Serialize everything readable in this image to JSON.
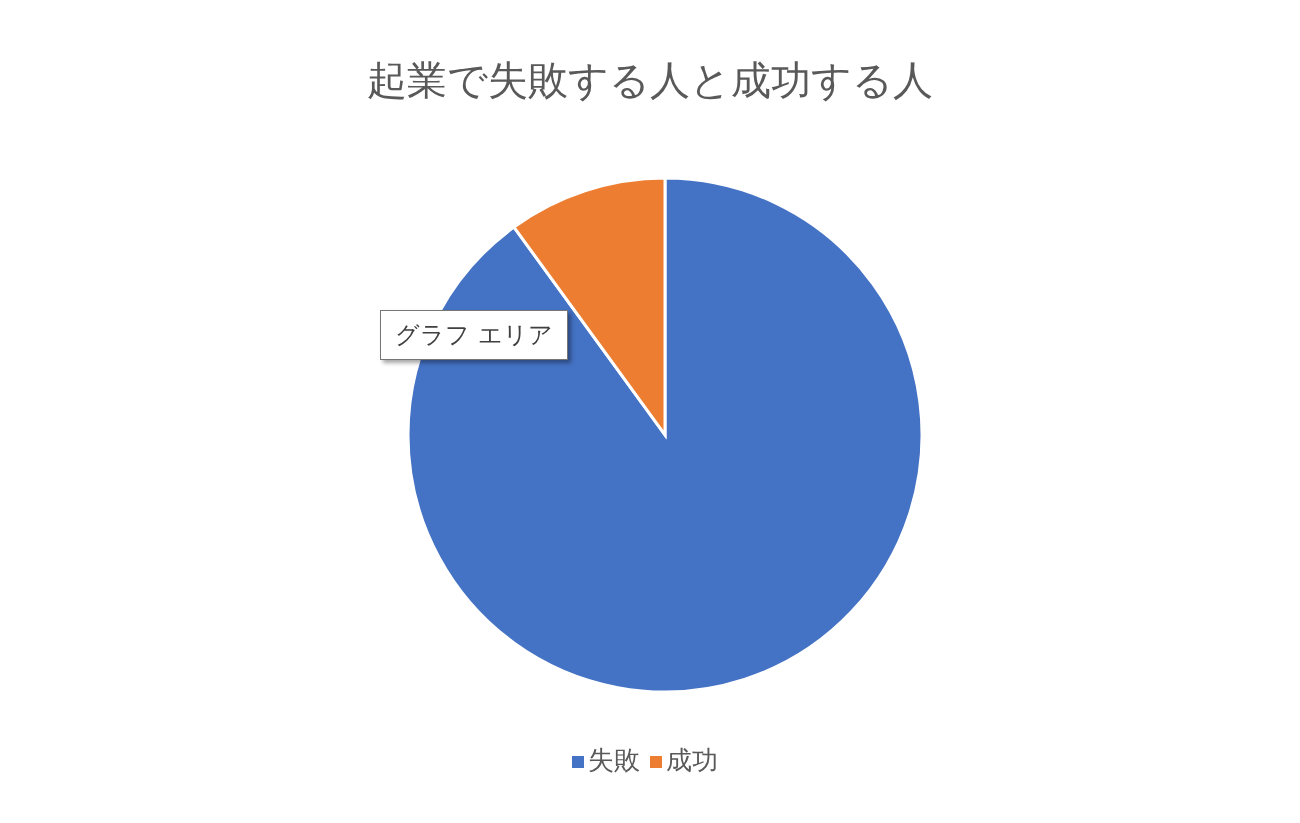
{
  "chart_data": {
    "type": "pie",
    "title": "起業で失敗する人と成功する人",
    "categories": [
      "失敗",
      "成功"
    ],
    "values": [
      90,
      10
    ],
    "colors": [
      "#4472c4",
      "#ed7d31"
    ],
    "legend": "bottom",
    "annotations": [
      "グラフ エリア"
    ]
  }
}
